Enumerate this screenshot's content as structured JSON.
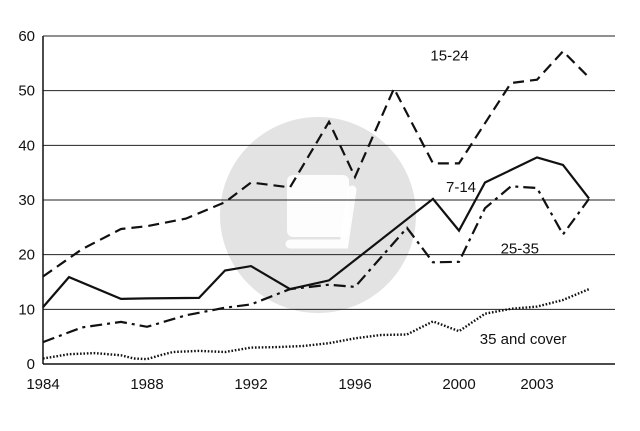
{
  "chart_data": {
    "type": "line",
    "title": "",
    "xlabel": "",
    "ylabel": "",
    "xlim": [
      1984,
      2006
    ],
    "ylim": [
      0,
      60
    ],
    "x_ticks": [
      1984,
      1988,
      1992,
      1996,
      2000,
      2003
    ],
    "x_tick_labels": [
      "1984",
      "1988",
      "1992",
      "1996",
      "2000",
      "2003"
    ],
    "y_ticks": [
      0,
      10,
      20,
      30,
      40,
      50,
      60
    ],
    "y_tick_labels": [
      "0",
      "10",
      "20",
      "30",
      "40",
      "50",
      "60"
    ],
    "grid": "horizontal",
    "legend": "none",
    "series": [
      {
        "name": "15-24",
        "style": "dashed",
        "label": "15-24",
        "x": [
          1984,
          1985.5,
          1987,
          1988,
          1989.5,
          1991,
          1992,
          1993.5,
          1995,
          1996,
          1997.5,
          1999,
          2000,
          2002,
          2003,
          2004,
          2005
        ],
        "y": [
          16,
          21,
          24.7,
          25.2,
          26.6,
          29.6,
          33.2,
          32.3,
          44.3,
          34.2,
          50.4,
          36.7,
          36.7,
          51.4,
          52,
          57.2,
          52.4
        ]
      },
      {
        "name": "7-14",
        "style": "solid",
        "label": "7-14",
        "x": [
          1984,
          1985,
          1987,
          1988,
          1990,
          1991,
          1992,
          1993.5,
          1995,
          1999,
          2000,
          2001,
          2003,
          2004,
          2005
        ],
        "y": [
          10.4,
          15.9,
          11.9,
          12.0,
          12.1,
          17.1,
          17.9,
          13.7,
          15.3,
          30.2,
          24.4,
          33.2,
          37.8,
          36.4,
          30.3
        ]
      },
      {
        "name": "25-35",
        "style": "dash-dot",
        "label": "25-35",
        "x": [
          1984,
          1985.5,
          1987,
          1988,
          1989.5,
          1991,
          1992,
          1993.5,
          1995,
          1996,
          1998,
          1999,
          2000,
          2001,
          2002,
          2003,
          2004,
          2005
        ],
        "y": [
          4,
          6.7,
          7.7,
          6.8,
          8.9,
          10.3,
          10.9,
          13.7,
          14.5,
          14.1,
          24.9,
          18.6,
          18.7,
          28.5,
          32.5,
          32.2,
          23.7,
          30.2
        ]
      },
      {
        "name": "35 and cover",
        "style": "dotted",
        "label": "35 and cover",
        "x": [
          1984,
          1985,
          1986,
          1987,
          1987.5,
          1988,
          1988.5,
          1989,
          1990,
          1991,
          1992,
          1993,
          1994,
          1995,
          1996,
          1997,
          1998,
          1999,
          2000,
          2001,
          2002,
          2003,
          2004,
          2005
        ],
        "y": [
          1,
          1.8,
          2,
          1.6,
          1.0,
          0.9,
          1.6,
          2.2,
          2.4,
          2.2,
          3,
          3.1,
          3.3,
          3.8,
          4.7,
          5.3,
          5.4,
          7.8,
          6,
          9.2,
          10.1,
          10.5,
          11.7,
          13.7
        ]
      }
    ]
  }
}
